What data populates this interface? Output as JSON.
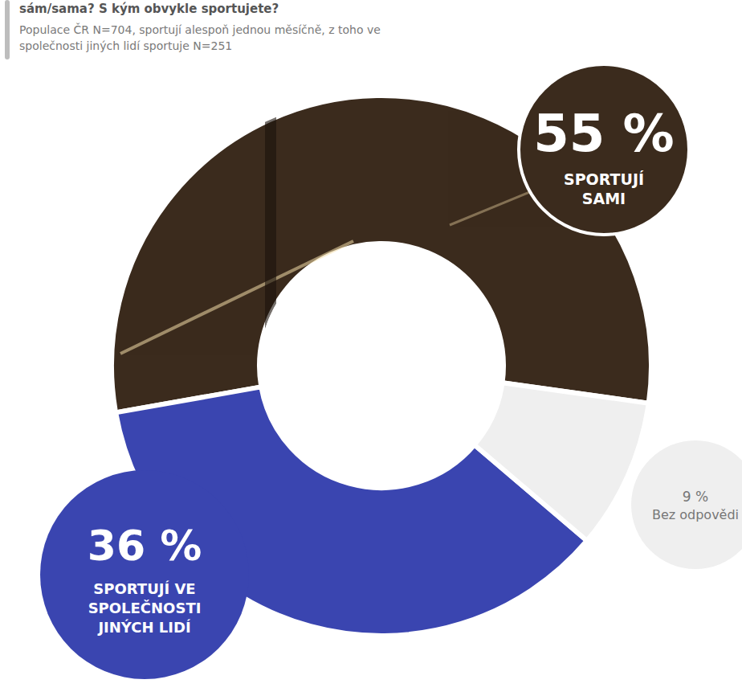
{
  "chart_data": {
    "type": "donut",
    "title": "sám/sama? S kým obvykle sportujete?",
    "subtitle": "Populace ČR N=704, sportují alespoň jednou měsíčně, z toho ve společnosti jiných lidí sportuje N=251",
    "categories": [
      "SPORTUJÍ SAMI",
      "SPORTUJÍ VE SPOLEČNOSTI JINÝCH LIDÍ",
      "Bez odpovědi"
    ],
    "values": [
      55,
      36,
      9
    ],
    "value_labels": [
      "55 %",
      "36 %",
      "9 %"
    ],
    "colors": [
      "#3b2b1d",
      "#3a45b0",
      "#efefef"
    ],
    "data_labels": true
  }
}
